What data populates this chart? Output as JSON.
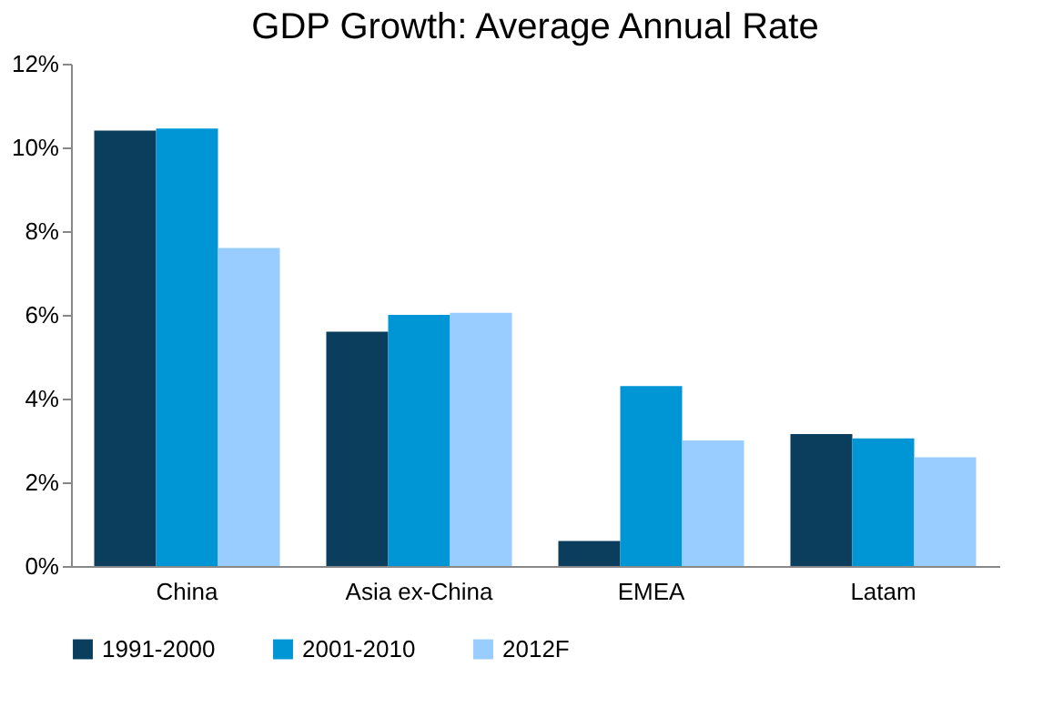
{
  "chart_data": {
    "type": "bar",
    "title": "GDP Growth: Average Annual Rate",
    "categories": [
      "China",
      "Asia ex-China",
      "EMEA",
      "Latam"
    ],
    "series": [
      {
        "name": "1991-2000",
        "color": "#0b3d5c",
        "values": [
          10.4,
          5.6,
          0.6,
          3.15
        ]
      },
      {
        "name": "2001-2010",
        "color": "#0096d6",
        "values": [
          10.45,
          6.0,
          4.3,
          3.05
        ]
      },
      {
        "name": "2012F",
        "color": "#99ccff",
        "values": [
          7.6,
          6.05,
          3.0,
          2.6
        ]
      }
    ],
    "ylim": [
      0,
      12
    ],
    "yticks": [
      {
        "value": 0,
        "label": "0%"
      },
      {
        "value": 2,
        "label": "2%"
      },
      {
        "value": 4,
        "label": "4%"
      },
      {
        "value": 6,
        "label": "6%"
      },
      {
        "value": 8,
        "label": "8%"
      },
      {
        "value": 10,
        "label": "10%"
      },
      {
        "value": 12,
        "label": "12%"
      }
    ],
    "grid": false,
    "legend": "bottom"
  }
}
